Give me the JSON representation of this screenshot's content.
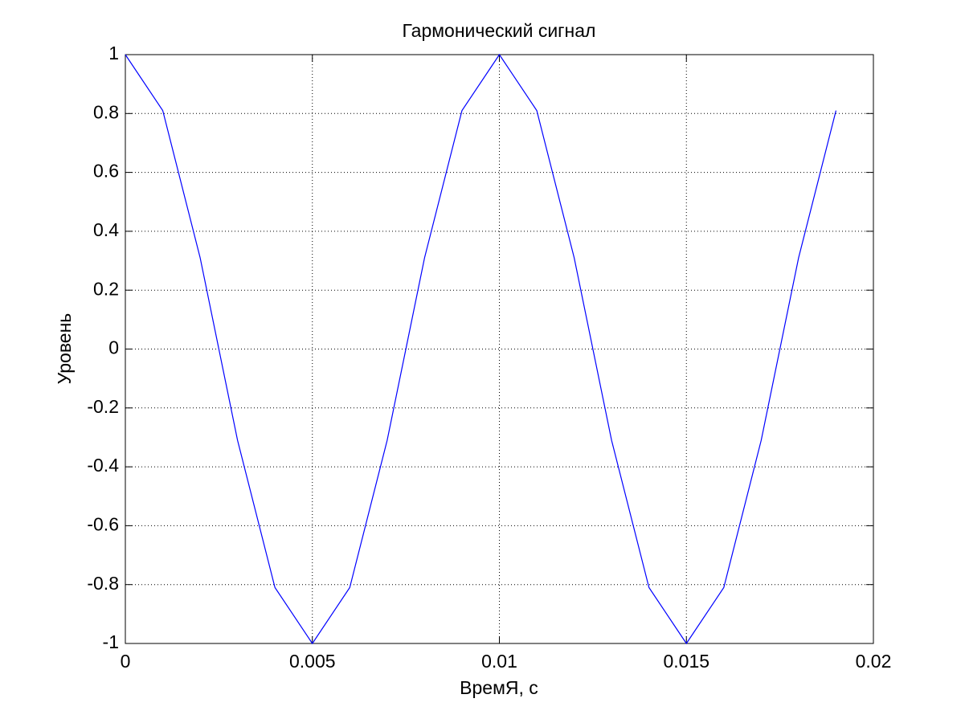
{
  "chart_data": {
    "type": "line",
    "title": "Гармонический сигнал",
    "x_label": "ВремЯ, с",
    "y_label": "Уровень",
    "x": [
      0,
      0.001,
      0.002,
      0.003,
      0.004,
      0.005,
      0.006,
      0.007,
      0.008,
      0.009,
      0.01,
      0.011,
      0.012,
      0.013,
      0.014,
      0.015,
      0.016,
      0.017,
      0.018,
      0.019
    ],
    "values": [
      1,
      0.81,
      0.31,
      -0.31,
      -0.81,
      -1,
      -0.81,
      -0.31,
      0.31,
      0.81,
      1,
      0.81,
      0.31,
      -0.31,
      -0.81,
      -1,
      -0.81,
      -0.31,
      0.31,
      0.81
    ],
    "color": "#0000ff",
    "xlim": [
      0,
      0.02
    ],
    "xticks": [
      0,
      0.005,
      0.01,
      0.015,
      0.02
    ],
    "ylim": [
      -1,
      1
    ],
    "yticks": [
      -1,
      -0.8,
      -0.6,
      -0.4,
      -0.2,
      0,
      0.2,
      0.4,
      0.6,
      0.8,
      1
    ],
    "grid": true
  }
}
